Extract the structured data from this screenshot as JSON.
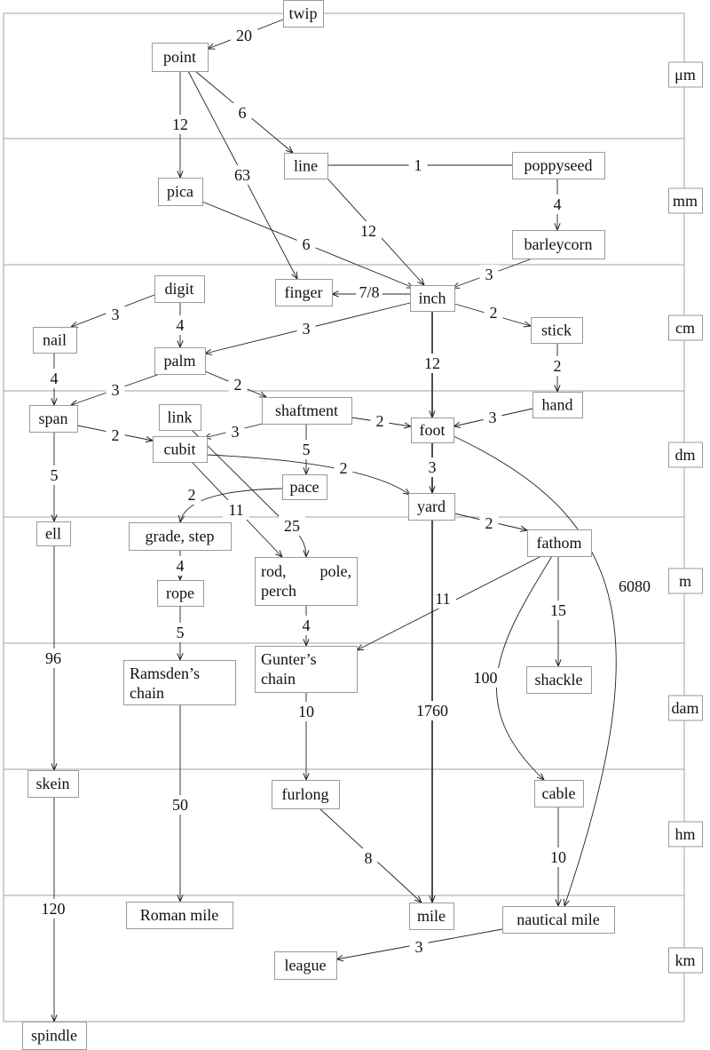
{
  "scale_labels": [
    "μm",
    "mm",
    "cm",
    "dm",
    "m",
    "dam",
    "hm",
    "km"
  ],
  "nodes": {
    "twip": "twip",
    "point": "point",
    "line": "line",
    "poppyseed": "poppyseed",
    "pica": "pica",
    "barleycorn": "barleycorn",
    "digit": "digit",
    "finger": "finger",
    "inch": "inch",
    "nail": "nail",
    "stick": "stick",
    "palm": "palm",
    "hand": "hand",
    "link": "link",
    "shaftment": "shaftment",
    "span": "span",
    "foot": "foot",
    "cubit": "cubit",
    "pace": "pace",
    "yard": "yard",
    "ell": "ell",
    "grade": "grade, step",
    "fathom": "fathom",
    "rod": [
      "rod,",
      "pole,",
      "perch"
    ],
    "rope": "rope",
    "gunter": [
      "Gunter’s",
      "chain"
    ],
    "ramsden": [
      "Ramsden’s",
      "chain"
    ],
    "shackle": "shackle",
    "skein": "skein",
    "furlong": "furlong",
    "cable": "cable",
    "roman_mile": "Roman mile",
    "mile": "mile",
    "nautical_mile": "nautical mile",
    "league": "league",
    "spindle": "spindle"
  },
  "edges": [
    {
      "from": "twip",
      "to": "point",
      "label": "20"
    },
    {
      "from": "point",
      "to": "pica",
      "label": "12"
    },
    {
      "from": "point",
      "to": "line",
      "label": "6"
    },
    {
      "from": "point",
      "to": "finger",
      "label": "63"
    },
    {
      "from": "line",
      "to": "poppyseed",
      "label": "1",
      "arrow": false
    },
    {
      "from": "line",
      "to": "inch",
      "label": "12"
    },
    {
      "from": "pica",
      "to": "inch",
      "label": "6"
    },
    {
      "from": "poppyseed",
      "to": "barleycorn",
      "label": "4"
    },
    {
      "from": "barleycorn",
      "to": "inch",
      "label": "3"
    },
    {
      "from": "inch",
      "to": "finger",
      "label": "7/8"
    },
    {
      "from": "digit",
      "to": "nail",
      "label": "3"
    },
    {
      "from": "digit",
      "to": "palm",
      "label": "4"
    },
    {
      "from": "inch",
      "to": "palm",
      "label": "3"
    },
    {
      "from": "inch",
      "to": "stick",
      "label": "2"
    },
    {
      "from": "inch",
      "to": "foot",
      "label": "12"
    },
    {
      "from": "stick",
      "to": "hand",
      "label": "2"
    },
    {
      "from": "nail",
      "to": "span",
      "label": "4"
    },
    {
      "from": "palm",
      "to": "span",
      "label": "3"
    },
    {
      "from": "palm",
      "to": "shaftment",
      "label": "2"
    },
    {
      "from": "shaftment",
      "to": "cubit",
      "label": "3"
    },
    {
      "from": "shaftment",
      "to": "foot",
      "label": "2"
    },
    {
      "from": "hand",
      "to": "foot",
      "label": "3"
    },
    {
      "from": "span",
      "to": "cubit",
      "label": "2"
    },
    {
      "from": "shaftment",
      "to": "pace",
      "label": "5"
    },
    {
      "from": "cubit",
      "to": "yard",
      "label": "2"
    },
    {
      "from": "foot",
      "to": "yard",
      "label": "3"
    },
    {
      "from": "span",
      "to": "ell",
      "label": "5"
    },
    {
      "from": "pace",
      "to": "grade",
      "label": "2"
    },
    {
      "from": "cubit",
      "to": "rod",
      "label": "11"
    },
    {
      "from": "link",
      "to": "rod",
      "label": "25"
    },
    {
      "from": "yard",
      "to": "fathom",
      "label": "2"
    },
    {
      "from": "grade",
      "to": "rope",
      "label": "4"
    },
    {
      "from": "rope",
      "to": "ramsden",
      "label": "5"
    },
    {
      "from": "rod",
      "to": "gunter",
      "label": "4"
    },
    {
      "from": "fathom",
      "to": "gunter",
      "label": "11"
    },
    {
      "from": "yard",
      "to": "mile",
      "label": "1760"
    },
    {
      "from": "fathom",
      "to": "shackle",
      "label": "15"
    },
    {
      "from": "fathom",
      "to": "cable",
      "label": "100"
    },
    {
      "from": "foot",
      "to": "nautical_mile",
      "label": "6080"
    },
    {
      "from": "ell",
      "to": "skein",
      "label": "96"
    },
    {
      "from": "gunter",
      "to": "furlong",
      "label": "10"
    },
    {
      "from": "ramsden",
      "to": "roman_mile",
      "label": "50"
    },
    {
      "from": "furlong",
      "to": "mile",
      "label": "8"
    },
    {
      "from": "cable",
      "to": "nautical_mile",
      "label": "10"
    },
    {
      "from": "skein",
      "to": "spindle",
      "label": "120"
    },
    {
      "from": "nautical_mile",
      "to": "league",
      "label": "3"
    }
  ]
}
